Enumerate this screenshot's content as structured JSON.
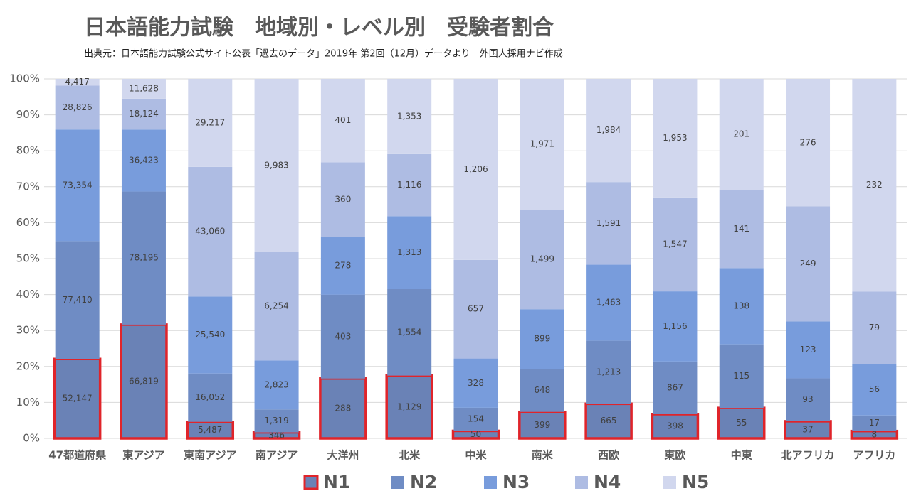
{
  "chart_data": {
    "type": "bar",
    "stacking": "percent",
    "title": "日本語能力試験　地域別・レベル別　受験者割合",
    "subtitle": "出典元：日本語能力試験公式サイト公表「過去のデータ」2019年 第2回（12月）データより　外国人採用ナビ作成",
    "categories": [
      "47都道府県",
      "東アジア",
      "東南アジア",
      "南アジア",
      "大洋州",
      "北米",
      "中米",
      "南米",
      "西欧",
      "東欧",
      "中東",
      "北アフリカ",
      "アフリカ"
    ],
    "series": [
      {
        "name": "N1",
        "color": "#6a82b6",
        "outline": "#e0242a",
        "values": [
          52147,
          66819,
          5487,
          346,
          288,
          1129,
          50,
          399,
          665,
          398,
          55,
          37,
          8
        ],
        "value_labels": [
          "52,147",
          "66,819",
          "5,487",
          "346",
          "288",
          "1,129",
          "50",
          "399",
          "665",
          "398",
          "55",
          "37",
          "8"
        ]
      },
      {
        "name": "N2",
        "color": "#6f8cc4",
        "values": [
          77410,
          78195,
          16052,
          1319,
          403,
          1554,
          154,
          648,
          1213,
          867,
          115,
          93,
          17
        ],
        "value_labels": [
          "77,410",
          "78,195",
          "16,052",
          "1,319",
          "403",
          "1,554",
          "154",
          "648",
          "1,213",
          "867",
          "115",
          "93",
          "17"
        ]
      },
      {
        "name": "N3",
        "color": "#789cdc",
        "values": [
          73354,
          36423,
          25540,
          2823,
          278,
          1313,
          328,
          899,
          1463,
          1156,
          138,
          123,
          56
        ],
        "value_labels": [
          "73,354",
          "36,423",
          "25,540",
          "2,823",
          "278",
          "1,313",
          "328",
          "899",
          "1,463",
          "1,156",
          "138",
          "123",
          "56"
        ]
      },
      {
        "name": "N4",
        "color": "#aebce3",
        "values": [
          28826,
          18124,
          43060,
          6254,
          360,
          1116,
          657,
          1499,
          1591,
          1547,
          141,
          249,
          79
        ],
        "value_labels": [
          "28,826",
          "18,124",
          "43,060",
          "6,254",
          "360",
          "1,116",
          "657",
          "1,499",
          "1,591",
          "1,547",
          "141",
          "249",
          "79"
        ]
      },
      {
        "name": "N5",
        "color": "#d1d7ee",
        "values": [
          4417,
          11628,
          29217,
          9983,
          401,
          1353,
          1206,
          1971,
          1984,
          1953,
          201,
          276,
          232
        ],
        "value_labels": [
          "4,417",
          "11,628",
          "29,217",
          "9,983",
          "401",
          "1,353",
          "1,206",
          "1,971",
          "1,984",
          "1,953",
          "201",
          "276",
          "232"
        ]
      }
    ],
    "ylim": [
      0,
      100
    ],
    "yticks": [
      {
        "value": 0,
        "label": "0%"
      },
      {
        "value": 10,
        "label": "10%"
      },
      {
        "value": 20,
        "label": "20%"
      },
      {
        "value": 30,
        "label": "30%"
      },
      {
        "value": 40,
        "label": "40%"
      },
      {
        "value": 50,
        "label": "50%"
      },
      {
        "value": 60,
        "label": "60%"
      },
      {
        "value": 70,
        "label": "70%"
      },
      {
        "value": 80,
        "label": "80%"
      },
      {
        "value": 90,
        "label": "90%"
      },
      {
        "value": 100,
        "label": "100%"
      }
    ],
    "grid": true,
    "legend": "bottom"
  }
}
